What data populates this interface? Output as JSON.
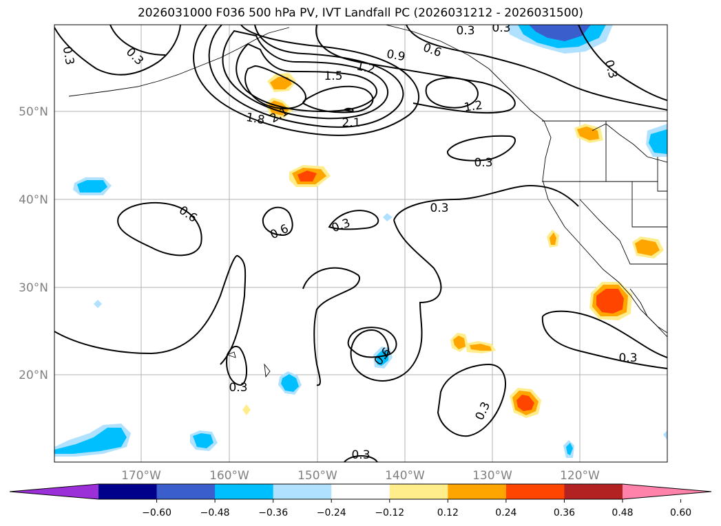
{
  "title": "2026031000 F036 500 hPa PV, IVT Landfall PC (2026031212 - 2026031500)",
  "lat_labels": [
    "50°N",
    "40°N",
    "30°N",
    "20°N"
  ],
  "lon_labels": [
    "170°W",
    "160°W",
    "150°W",
    "140°W",
    "130°W",
    "120°W"
  ],
  "contour_labels": {
    "c1": "0.3",
    "c2": "0.3",
    "c3": "0.3",
    "c4": "0.3",
    "c5": "0.6",
    "c6": "0.9",
    "c7": "1.2",
    "c8": "1.5",
    "c9": "1.8",
    "c10": "2.1",
    "c11": "2.1",
    "c12": "1.2",
    "c13": "0.3",
    "c14": "0.6",
    "c15": "0.6",
    "c16": "0.3",
    "c17": "0.3",
    "c18": "0.3",
    "c19": "0.3",
    "c20": "0.6",
    "c21": "0.3",
    "c22": "0.3",
    "c23": "0.3",
    "c24": "0.3"
  },
  "colorbar": {
    "ticks": [
      "−0.60",
      "−0.48",
      "−0.36",
      "−0.24",
      "−0.12",
      "0.12",
      "0.24",
      "0.36",
      "0.48",
      "0.60"
    ],
    "colors": [
      "#9b30d9",
      "#00008b",
      "#3a5fcd",
      "#00bfff",
      "#b0e2ff",
      "#ffffff",
      "#ffec8b",
      "#ffa500",
      "#ff4500",
      "#b22222",
      "#ff82ab"
    ]
  },
  "colors": {
    "pos1": "#ffec8b",
    "pos2": "#ffa500",
    "pos3": "#ff4500",
    "neg1": "#b0e2ff",
    "neg2": "#00bfff",
    "neg3": "#3a5fcd",
    "grid": "#b0b0b0",
    "contour": "#000000"
  }
}
